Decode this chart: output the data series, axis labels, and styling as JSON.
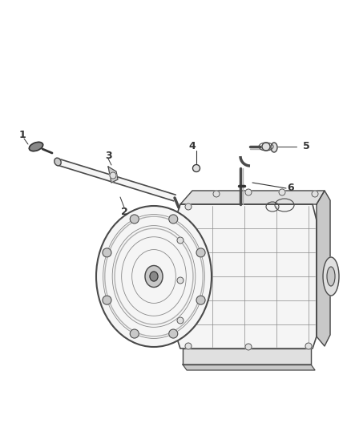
{
  "bg_color": "#ffffff",
  "line_color": "#4a4a4a",
  "light_gray": "#b0b0b0",
  "mid_gray": "#888888",
  "dark_gray": "#333333",
  "fill_light": "#f5f5f5",
  "fill_mid": "#e0e0e0",
  "fill_dark": "#c8c8c8",
  "fig_width": 4.38,
  "fig_height": 5.33,
  "dpi": 100
}
